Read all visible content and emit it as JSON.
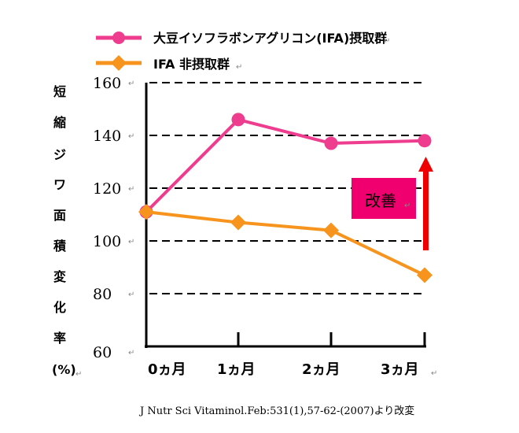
{
  "chart_data": {
    "type": "line",
    "categories": [
      "0ヵ月",
      "1ヵ月",
      "2ヵ月",
      "3ヵ月"
    ],
    "series": [
      {
        "name": "大豆イソフラボンアグリコン(IFA)摂取群",
        "color": "#ee3d8f",
        "marker": "circle",
        "values": [
          111,
          146,
          137,
          138
        ]
      },
      {
        "name": "IFA 非摂取群",
        "color": "#f7941d",
        "marker": "diamond",
        "values": [
          111,
          107,
          104,
          87
        ]
      }
    ],
    "ylabel_chars": [
      "短",
      "縮",
      "ジ",
      "ワ",
      "面",
      "積",
      "変",
      "化",
      "率",
      "(%)"
    ],
    "yticks": [
      60,
      80,
      100,
      120,
      140,
      160
    ],
    "ylim": [
      60,
      160
    ],
    "grid": "dashed-horizontal",
    "legend_position": "top-left",
    "annotation": {
      "label": "改善",
      "color": "#f0006e",
      "arrow_color": "#ee0000"
    },
    "source_note": "J Nutr Sci Vitaminol.Feb:531(1),57-62-(2007)より改変",
    "paragraph_mark": "↵"
  }
}
